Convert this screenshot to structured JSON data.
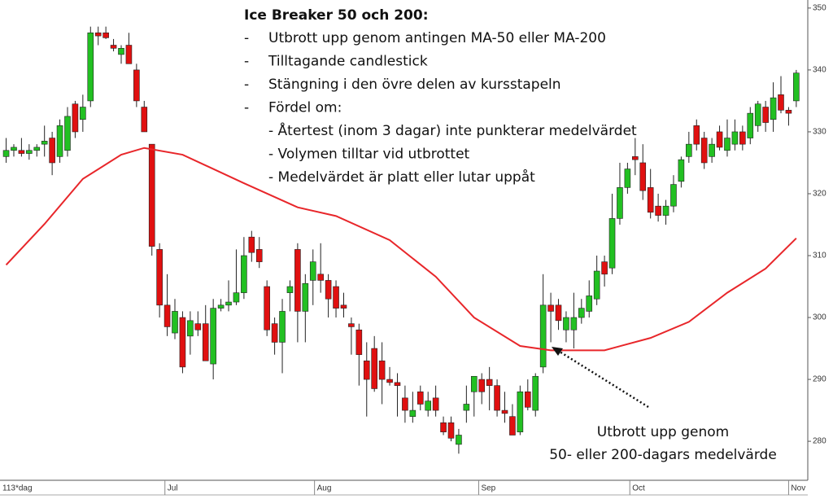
{
  "chart_data": {
    "type": "candlestick",
    "title": "Ice Breaker 50 och 200:",
    "bullet": "-",
    "bullets": [
      "Utbrott upp genom antingen MA-50 eller MA-200",
      "Tilltagande candlestick",
      "Stängning i den övre delen av kursstapeln",
      "Fördel om:"
    ],
    "sub_bullets": [
      "- Återtest (inom 3 dagar) inte punkterar medelvärdet",
      "- Volymen tilltar vid utbrottet",
      "- Medelvärdet är platt eller lutar uppåt"
    ],
    "annotation": [
      "Utbrott upp genom",
      "50- eller 200-dagars medelvärde"
    ],
    "period_label": "113*dag",
    "up_color": "#22c022",
    "down_color": "#e01010",
    "candles": [
      [
        326,
        329,
        325,
        327
      ],
      [
        327,
        328,
        326,
        327.5
      ],
      [
        327,
        329,
        326,
        326.5
      ],
      [
        326.5,
        328,
        325.5,
        327
      ],
      [
        327,
        328,
        326,
        327.5
      ],
      [
        328,
        331,
        326,
        328.5
      ],
      [
        329,
        330,
        323,
        325
      ],
      [
        326,
        332,
        325,
        331
      ],
      [
        327,
        334,
        326,
        332.5
      ],
      [
        334.5,
        335,
        329,
        330
      ],
      [
        332,
        336,
        330,
        334
      ],
      [
        335,
        347,
        334,
        346
      ],
      [
        346,
        347,
        344,
        345.5
      ],
      [
        346,
        347,
        345,
        345.2
      ],
      [
        344,
        345,
        343,
        343.5
      ],
      [
        342.5,
        344,
        341,
        343.5
      ],
      [
        344,
        346,
        341,
        341
      ],
      [
        340,
        341,
        334,
        335
      ],
      [
        334,
        335,
        330,
        330
      ],
      [
        328,
        328,
        310,
        311.5
      ],
      [
        311,
        312,
        300,
        302
      ],
      [
        302,
        307,
        297,
        298.5
      ],
      [
        297.5,
        303,
        296.5,
        301
      ],
      [
        300,
        301,
        291,
        292
      ],
      [
        297,
        301,
        294,
        299.5
      ],
      [
        299,
        301,
        297,
        298
      ],
      [
        299,
        302,
        293,
        293
      ],
      [
        292.5,
        303,
        290,
        301.5
      ],
      [
        301.5,
        303,
        301,
        302
      ],
      [
        302,
        306,
        301,
        302.5
      ],
      [
        302.5,
        311,
        302,
        304
      ],
      [
        304,
        313,
        303,
        310
      ],
      [
        313,
        314,
        309,
        310.5
      ],
      [
        311,
        313,
        308,
        309
      ],
      [
        305,
        306,
        297,
        298
      ],
      [
        299,
        300,
        294,
        296
      ],
      [
        296,
        303,
        291,
        301
      ],
      [
        304,
        306,
        301,
        305
      ],
      [
        311,
        312,
        296,
        301
      ],
      [
        301,
        307,
        296,
        305.5
      ],
      [
        306,
        311,
        302,
        309
      ],
      [
        307,
        312,
        304,
        306
      ],
      [
        306,
        307,
        300,
        303
      ],
      [
        305,
        306,
        300,
        301.5
      ],
      [
        302,
        304,
        300,
        301.5
      ],
      [
        299,
        300,
        294,
        298.5
      ],
      [
        298,
        299,
        289,
        294
      ],
      [
        293,
        296,
        284,
        290
      ],
      [
        295,
        297,
        288,
        288.5
      ],
      [
        293,
        296,
        286,
        290
      ],
      [
        290,
        292,
        289,
        289.5
      ],
      [
        289.5,
        291,
        284,
        289
      ],
      [
        287,
        289,
        283,
        285
      ],
      [
        284,
        288,
        283,
        285
      ],
      [
        288,
        289,
        285,
        286
      ],
      [
        285,
        288,
        284,
        286.5
      ],
      [
        287,
        289,
        284,
        285
      ],
      [
        283,
        284,
        281,
        281.5
      ],
      [
        283,
        284,
        280,
        280.5
      ],
      [
        279.5,
        282,
        278,
        281
      ],
      [
        285,
        289,
        283,
        286
      ],
      [
        288,
        290,
        284,
        290.5
      ],
      [
        290,
        291,
        286,
        288
      ],
      [
        290,
        292,
        285,
        289
      ],
      [
        289,
        290,
        284,
        285
      ],
      [
        285,
        288,
        283,
        284.5
      ],
      [
        284,
        286,
        281,
        281
      ],
      [
        281.5,
        289,
        281,
        288
      ],
      [
        288,
        290,
        285,
        285.5
      ],
      [
        285,
        291,
        284,
        290.5
      ],
      [
        292,
        307,
        291,
        302
      ],
      [
        302,
        304,
        296,
        301
      ],
      [
        302,
        303,
        298,
        299.5
      ],
      [
        298,
        301,
        296,
        300
      ],
      [
        298,
        304,
        295,
        300
      ],
      [
        300,
        303,
        299,
        301.5
      ],
      [
        301,
        306,
        300,
        303.5
      ],
      [
        303,
        310,
        302,
        307.5
      ],
      [
        309,
        310,
        305,
        307
      ],
      [
        308,
        320,
        307,
        316
      ],
      [
        316,
        325,
        315,
        321
      ],
      [
        321,
        325,
        320,
        324
      ],
      [
        326,
        329,
        323,
        325.5
      ],
      [
        325,
        328,
        319,
        320.5
      ],
      [
        321,
        324,
        316,
        317
      ],
      [
        318,
        320,
        315.5,
        316.5
      ],
      [
        316.5,
        319,
        315,
        318
      ],
      [
        318,
        323,
        317,
        321.5
      ],
      [
        322,
        326,
        321,
        325.5
      ],
      [
        326,
        330,
        325,
        328
      ],
      [
        331,
        332,
        327,
        328
      ],
      [
        329,
        330,
        324,
        325
      ],
      [
        326,
        329,
        325,
        328
      ],
      [
        330,
        331,
        327,
        327.5
      ],
      [
        327,
        332,
        326,
        329
      ],
      [
        328,
        332,
        327,
        330
      ],
      [
        330,
        331,
        327,
        328
      ],
      [
        329,
        334,
        328,
        333
      ],
      [
        331,
        335,
        330,
        334.5
      ],
      [
        334,
        335,
        330,
        331.5
      ],
      [
        332,
        338,
        330,
        335.5
      ],
      [
        336,
        339,
        333,
        333.5
      ],
      [
        333.5,
        334,
        331,
        333
      ],
      [
        335,
        340,
        334,
        339.5
      ]
    ],
    "ma": {
      "color": "#e8262a",
      "x": [
        0,
        5,
        10,
        15,
        18,
        23,
        31,
        38,
        43,
        50,
        56,
        61,
        67,
        71,
        78,
        84,
        89,
        94,
        99,
        103
      ],
      "values": [
        308.5,
        315.1,
        322.4,
        326.3,
        327.4,
        326.3,
        321.7,
        317.8,
        316.4,
        312.5,
        306.6,
        300,
        295.4,
        294.7,
        294.7,
        296.7,
        299.3,
        304,
        307.9,
        312.8
      ]
    },
    "xlim": [
      -0.8,
      104.5
    ],
    "xticks": [
      {
        "value": 20.7,
        "label": "Jul"
      },
      {
        "value": 40.2,
        "label": "Aug"
      },
      {
        "value": 61.6,
        "label": "Sep"
      },
      {
        "value": 81.3,
        "label": "Oct"
      },
      {
        "value": 102,
        "label": "Nov"
      }
    ],
    "ylim": [
      273.7,
      351.3
    ],
    "yticks": [
      280,
      290,
      300,
      310,
      320,
      330,
      340,
      350
    ]
  }
}
